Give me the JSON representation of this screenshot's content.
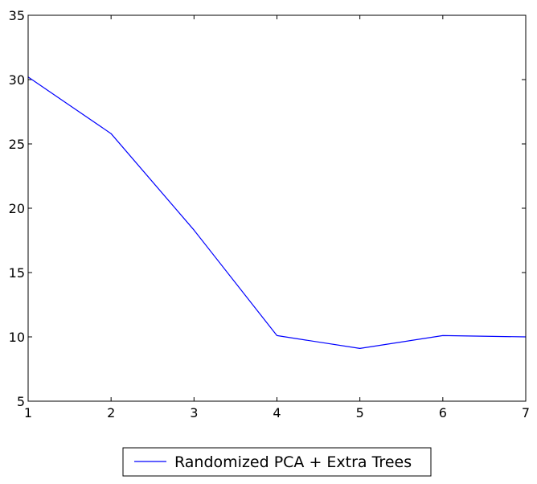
{
  "chart_data": {
    "type": "line",
    "x": [
      1,
      2,
      3,
      4,
      5,
      6,
      7
    ],
    "series": [
      {
        "name": "Randomized PCA + Extra Trees",
        "values": [
          30.2,
          25.8,
          18.3,
          10.1,
          9.1,
          10.1,
          10.0
        ],
        "color": "#0000ff"
      }
    ],
    "xlim": [
      1,
      7
    ],
    "ylim": [
      5,
      35
    ],
    "xticks": [
      "1",
      "2",
      "3",
      "4",
      "5",
      "6",
      "7"
    ],
    "yticks": [
      "5",
      "10",
      "15",
      "20",
      "25",
      "30",
      "35"
    ],
    "grid": false,
    "legend_position": "bottom-center"
  }
}
